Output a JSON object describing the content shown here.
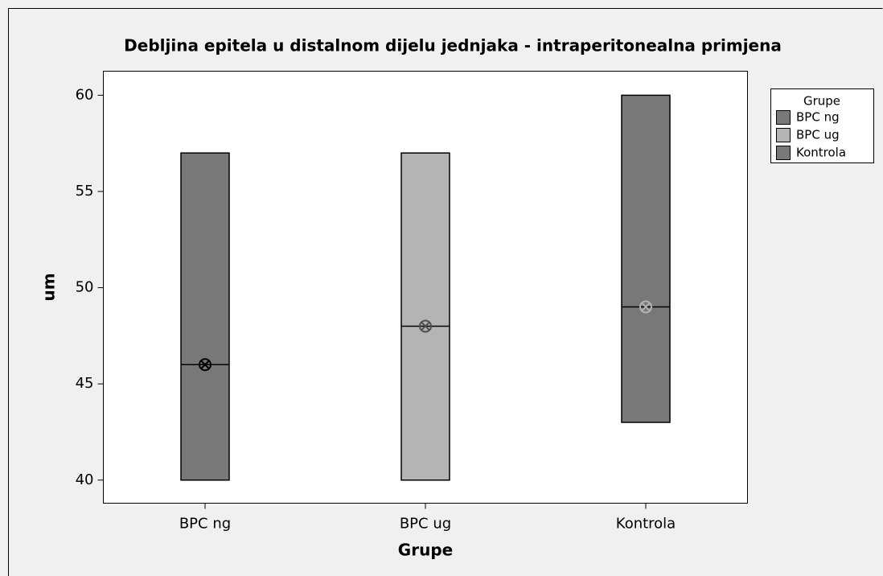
{
  "chart_data": {
    "type": "box",
    "title": "Debljina epitela u distalnom dijelu jednjaka - intraperitonealna primjena",
    "y_label": "um",
    "x_label": "Grupe",
    "legend_title": "Grupe",
    "categories": [
      "BPC ng",
      "BPC ug",
      "Kontrola"
    ],
    "colors": [
      "#787878",
      "#b4b4b4",
      "#787878"
    ],
    "mean_colors": [
      "#000000",
      "#505050",
      "#b4b4b4"
    ],
    "min": [
      40,
      40,
      43
    ],
    "max": [
      57,
      57,
      60
    ],
    "median": [
      46,
      48,
      49
    ],
    "mean": [
      46,
      48,
      49
    ],
    "ylim": [
      38.8,
      61.25
    ],
    "yticks": [
      40,
      45,
      50,
      55,
      60
    ],
    "legend": "top-right"
  }
}
